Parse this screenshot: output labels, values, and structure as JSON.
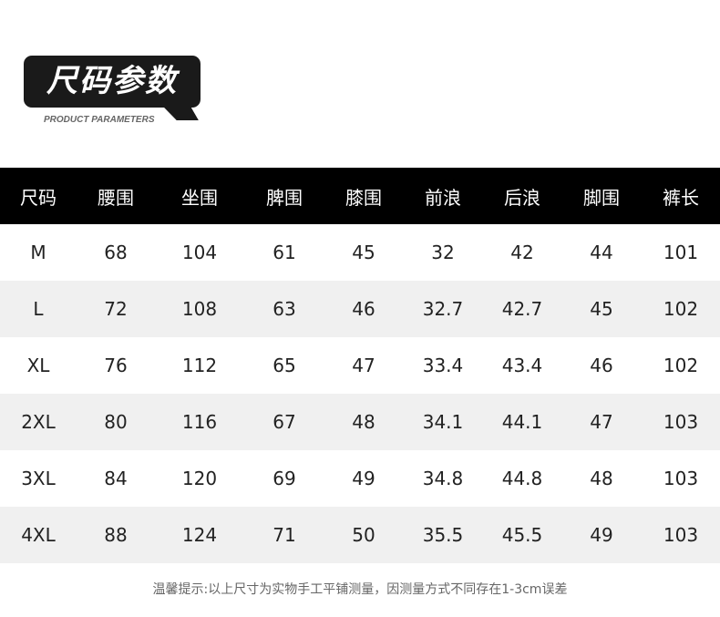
{
  "badge": {
    "title": "尺码参数",
    "subtitle": "PRODUCT PARAMETERS"
  },
  "table": {
    "headers": [
      "尺码",
      "腰围",
      "坐围",
      "脾围",
      "膝围",
      "前浪",
      "后浪",
      "脚围",
      "裤长"
    ],
    "rows": [
      [
        "M",
        "68",
        "104",
        "61",
        "45",
        "32",
        "42",
        "44",
        "101"
      ],
      [
        "L",
        "72",
        "108",
        "63",
        "46",
        "32.7",
        "42.7",
        "45",
        "102"
      ],
      [
        "XL",
        "76",
        "112",
        "65",
        "47",
        "33.4",
        "43.4",
        "46",
        "102"
      ],
      [
        "2XL",
        "80",
        "116",
        "67",
        "48",
        "34.1",
        "44.1",
        "47",
        "103"
      ],
      [
        "3XL",
        "84",
        "120",
        "69",
        "49",
        "34.8",
        "44.8",
        "48",
        "103"
      ],
      [
        "4XL",
        "88",
        "124",
        "71",
        "50",
        "35.5",
        "45.5",
        "49",
        "103"
      ]
    ]
  },
  "note": "温馨提示:以上尺寸为实物手工平铺测量，因测量方式不同存在1-3cm误差"
}
